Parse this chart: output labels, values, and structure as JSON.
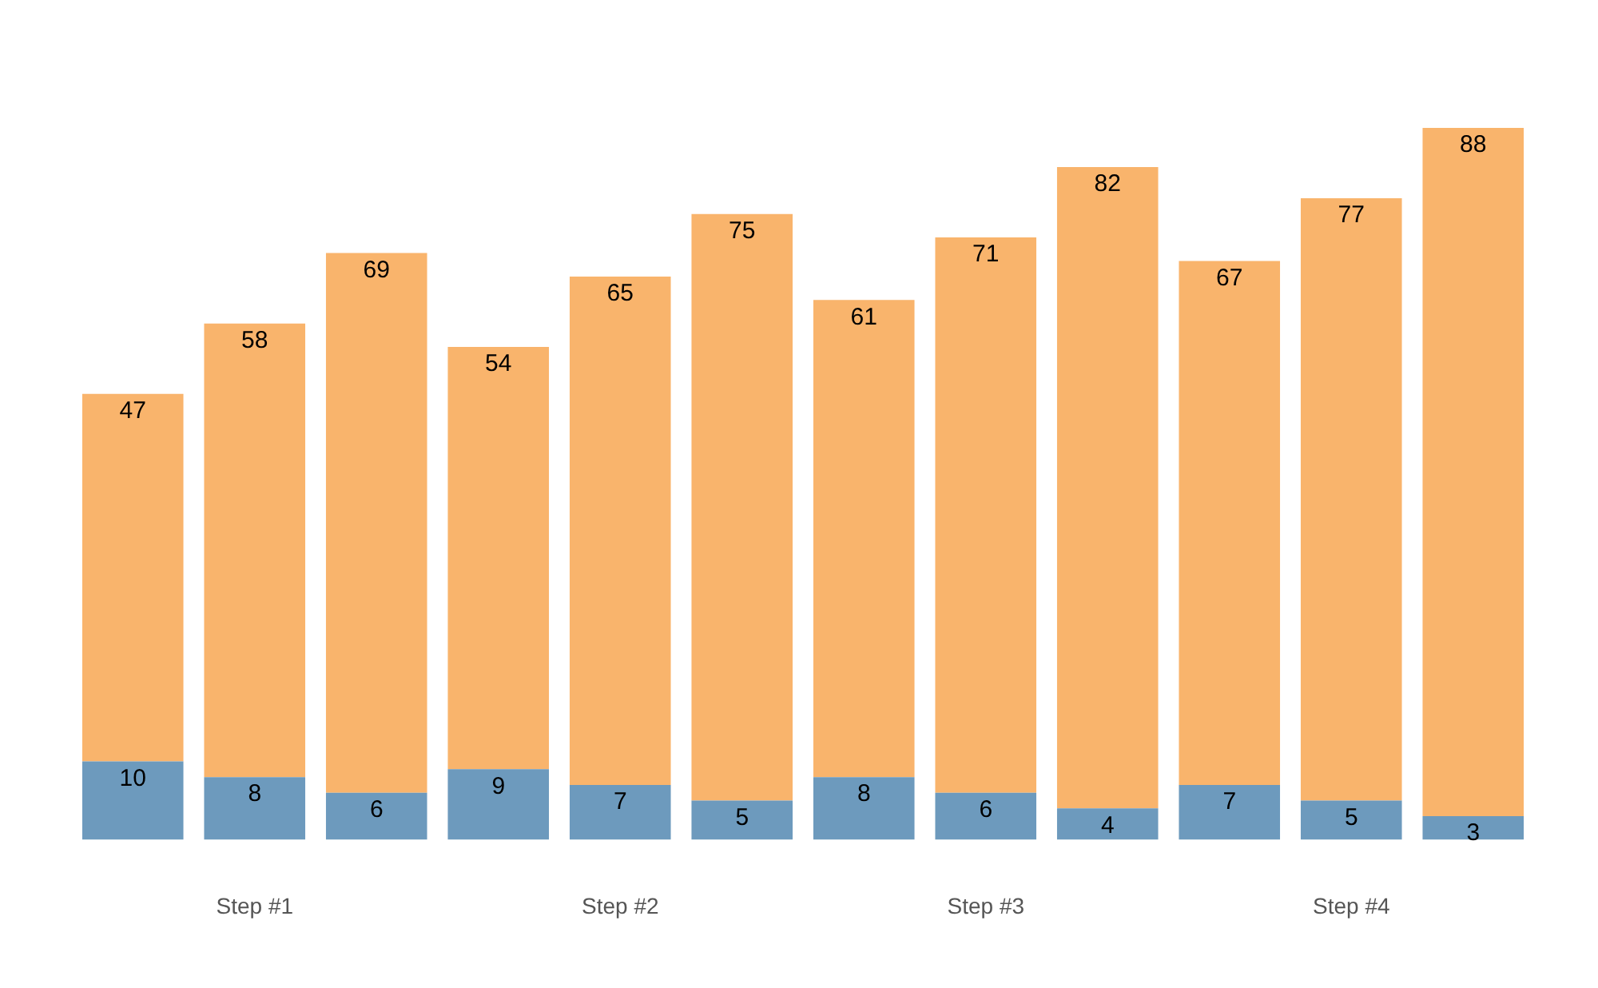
{
  "chart_data": {
    "type": "bar",
    "stacked": true,
    "data_labels": true,
    "categories": [
      null,
      "Step #1",
      null,
      null,
      "Step #2",
      null,
      null,
      "Step #3",
      null,
      null,
      "Step #4",
      null
    ],
    "series": [
      {
        "color": "#6d9abd",
        "values": [
          10,
          8,
          6,
          9,
          7,
          5,
          8,
          6,
          4,
          7,
          5,
          3
        ]
      },
      {
        "color": "#f9b46c",
        "values": [
          47,
          58,
          69,
          54,
          65,
          75,
          61,
          71,
          82,
          67,
          77,
          88
        ]
      }
    ],
    "grid": false,
    "legend": false
  }
}
